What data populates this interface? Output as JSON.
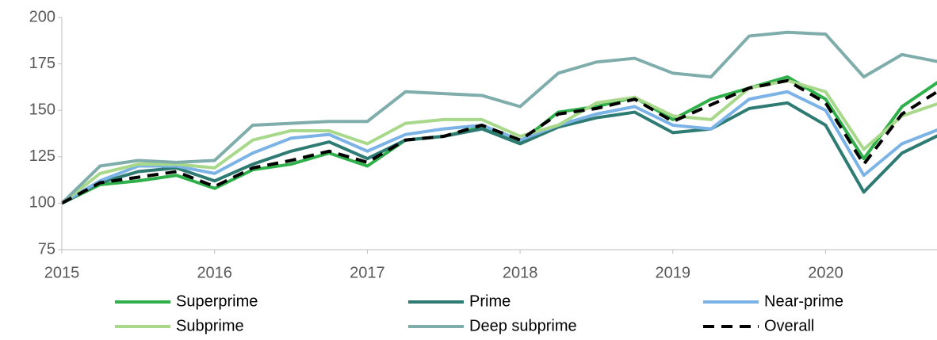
{
  "chart_data": {
    "type": "line",
    "x": [
      2015,
      2015.25,
      2015.5,
      2015.75,
      2016,
      2016.25,
      2016.5,
      2016.75,
      2017,
      2017.25,
      2017.5,
      2017.75,
      2018,
      2018.25,
      2018.5,
      2018.75,
      2019,
      2019.25,
      2019.5,
      2019.75,
      2020,
      2020.25,
      2020.5,
      2020.75
    ],
    "xlim": [
      2015,
      2020.75
    ],
    "xticks": [
      2015,
      2016,
      2017,
      2018,
      2019,
      2020
    ],
    "ylim": [
      75,
      200
    ],
    "yticks": [
      75,
      100,
      125,
      150,
      175,
      200
    ],
    "grid": false,
    "series": [
      {
        "name": "Superprime",
        "color": "#2fb04a",
        "values": [
          100,
          110,
          112,
          115,
          108,
          118,
          121,
          127,
          120,
          134,
          136,
          141,
          133,
          149,
          152,
          157,
          145,
          156,
          162,
          168,
          156,
          124,
          152,
          166
        ]
      },
      {
        "name": "Prime",
        "color": "#2e7b73",
        "values": [
          100,
          111,
          117,
          119,
          112,
          121,
          128,
          133,
          124,
          134,
          136,
          140,
          132,
          141,
          146,
          149,
          138,
          140,
          151,
          154,
          142,
          106,
          127,
          137
        ]
      },
      {
        "name": "Near-prime",
        "color": "#7cb3e6",
        "values": [
          100,
          112,
          120,
          120,
          116,
          127,
          135,
          137,
          128,
          137,
          140,
          142,
          134,
          142,
          148,
          152,
          142,
          140,
          156,
          160,
          150,
          115,
          132,
          140
        ]
      },
      {
        "name": "Subprime",
        "color": "#a8d98a",
        "values": [
          100,
          116,
          121,
          121,
          119,
          134,
          139,
          139,
          132,
          143,
          145,
          145,
          136,
          142,
          154,
          157,
          147,
          145,
          162,
          166,
          160,
          129,
          147,
          154
        ]
      },
      {
        "name": "Deep subprime",
        "color": "#7fadab",
        "values": [
          100,
          120,
          123,
          122,
          123,
          142,
          143,
          144,
          144,
          160,
          159,
          158,
          152,
          170,
          176,
          178,
          170,
          168,
          190,
          192,
          191,
          168,
          180,
          176
        ]
      },
      {
        "name": "Overall",
        "color": "#000000",
        "dashed": true,
        "values": [
          100,
          111,
          114,
          117,
          109,
          119,
          123,
          128,
          122,
          134,
          136,
          142,
          134,
          148,
          151,
          156,
          144,
          153,
          162,
          166,
          154,
          121,
          148,
          161
        ]
      }
    ]
  }
}
